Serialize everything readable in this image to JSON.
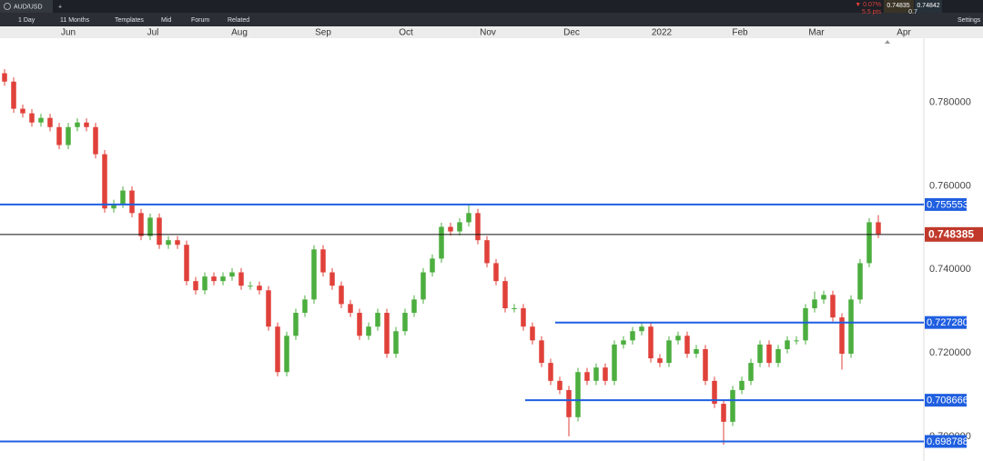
{
  "toolbar": {
    "symbol": "AUD/USD",
    "add": "+",
    "interval": "1 Day",
    "range": "11 Months",
    "templates": "Templates",
    "mid": "Mid",
    "forum": "Forum",
    "related": "Related",
    "settings": "Settings",
    "change_pct": "▼ 0.07%",
    "change_pts": "5.5 pts",
    "sell": "0.74835",
    "buy": "0.74842",
    "spread": "0.7"
  },
  "chart_data": {
    "type": "candlestick",
    "x": [
      0,
      1,
      2,
      3,
      4,
      5,
      6,
      7,
      8,
      9,
      10,
      11,
      12,
      13,
      14,
      15,
      16,
      17,
      18,
      19,
      20,
      21,
      22,
      23,
      24,
      25,
      26,
      27,
      28,
      29,
      30,
      31,
      32,
      33,
      34,
      35,
      36,
      37,
      38,
      39,
      40,
      41,
      42,
      43,
      44,
      45,
      46,
      47,
      48,
      49,
      50,
      51,
      52,
      53,
      54,
      55,
      56,
      57,
      58,
      59,
      60,
      61,
      62,
      63,
      64,
      65,
      66,
      67,
      68,
      69,
      70,
      71,
      72,
      73,
      74,
      75,
      76,
      77,
      78,
      79,
      80,
      81,
      82,
      83,
      84,
      85,
      86,
      87,
      88,
      89,
      90,
      91,
      92,
      93,
      94,
      95,
      96
    ],
    "open": [
      0.787,
      0.785,
      0.7785,
      0.7774,
      0.7752,
      0.7763,
      0.7741,
      0.7698,
      0.7741,
      0.7752,
      0.7741,
      0.7676,
      0.7546,
      0.7557,
      0.7589,
      0.7535,
      0.748,
      0.7524,
      0.7459,
      0.747,
      0.7459,
      0.7372,
      0.735,
      0.7383,
      0.7372,
      0.7383,
      0.7393,
      0.7361,
      0.7361,
      0.735,
      0.7263,
      0.7154,
      0.7241,
      0.7296,
      0.7328,
      0.7448,
      0.7393,
      0.7361,
      0.7317,
      0.7296,
      0.7241,
      0.7263,
      0.7296,
      0.7198,
      0.7252,
      0.7296,
      0.7328,
      0.7393,
      0.7426,
      0.7502,
      0.7491,
      0.7513,
      0.7535,
      0.747,
      0.7415,
      0.7372,
      0.7307,
      0.7307,
      0.7263,
      0.723,
      0.7176,
      0.7133,
      0.7111,
      0.7046,
      0.7154,
      0.7133,
      0.7165,
      0.7133,
      0.722,
      0.723,
      0.7252,
      0.7263,
      0.7187,
      0.7176,
      0.723,
      0.7241,
      0.7198,
      0.7209,
      0.7133,
      0.7078,
      0.7035,
      0.7111,
      0.7133,
      0.7176,
      0.722,
      0.7176,
      0.7209,
      0.723,
      0.723,
      0.7307,
      0.7328,
      0.7339,
      0.7285,
      0.7198,
      0.7328,
      0.7415,
      0.7513
    ],
    "high": [
      0.788,
      0.786,
      0.7795,
      0.7784,
      0.7773,
      0.7773,
      0.7751,
      0.7751,
      0.7762,
      0.7762,
      0.7751,
      0.7686,
      0.7567,
      0.7599,
      0.7599,
      0.7545,
      0.7534,
      0.7534,
      0.748,
      0.748,
      0.7469,
      0.7382,
      0.7393,
      0.7393,
      0.7393,
      0.7403,
      0.7403,
      0.7371,
      0.7371,
      0.736,
      0.7273,
      0.7251,
      0.7306,
      0.7338,
      0.7458,
      0.7458,
      0.7403,
      0.7371,
      0.7327,
      0.7306,
      0.7273,
      0.7306,
      0.7306,
      0.7262,
      0.7306,
      0.7338,
      0.7403,
      0.7436,
      0.7512,
      0.7512,
      0.7523,
      0.7555,
      0.7545,
      0.748,
      0.7425,
      0.7382,
      0.7317,
      0.7317,
      0.7273,
      0.724,
      0.7186,
      0.7143,
      0.7121,
      0.7164,
      0.7164,
      0.7175,
      0.7175,
      0.723,
      0.724,
      0.7262,
      0.7273,
      0.7273,
      0.7197,
      0.724,
      0.7251,
      0.7251,
      0.7219,
      0.7219,
      0.7143,
      0.7088,
      0.7121,
      0.7143,
      0.7186,
      0.723,
      0.723,
      0.7219,
      0.724,
      0.724,
      0.7317,
      0.7347,
      0.7349,
      0.7349,
      0.7295,
      0.7338,
      0.7425,
      0.7523,
      0.753
    ],
    "low": [
      0.784,
      0.7775,
      0.7764,
      0.7742,
      0.7742,
      0.7731,
      0.7688,
      0.7688,
      0.7731,
      0.7731,
      0.7666,
      0.7536,
      0.7536,
      0.7547,
      0.7525,
      0.747,
      0.747,
      0.7449,
      0.7449,
      0.7449,
      0.7362,
      0.734,
      0.734,
      0.7362,
      0.7362,
      0.7373,
      0.7351,
      0.7351,
      0.734,
      0.7253,
      0.7144,
      0.7144,
      0.7231,
      0.7286,
      0.7318,
      0.7383,
      0.7351,
      0.7307,
      0.7286,
      0.7231,
      0.7231,
      0.7253,
      0.7188,
      0.7188,
      0.7242,
      0.7286,
      0.7318,
      0.7383,
      0.7416,
      0.7481,
      0.7481,
      0.7503,
      0.746,
      0.7405,
      0.7362,
      0.7297,
      0.7297,
      0.7253,
      0.722,
      0.7166,
      0.7123,
      0.7101,
      0.7,
      0.7036,
      0.7123,
      0.7123,
      0.7123,
      0.7123,
      0.721,
      0.722,
      0.7242,
      0.7177,
      0.7166,
      0.7166,
      0.722,
      0.7188,
      0.7188,
      0.7123,
      0.7068,
      0.698,
      0.7025,
      0.7101,
      0.7123,
      0.7166,
      0.7166,
      0.7166,
      0.7199,
      0.722,
      0.722,
      0.7297,
      0.7318,
      0.7275,
      0.716,
      0.7188,
      0.7318,
      0.7405,
      0.7475
    ],
    "close": [
      0.785,
      0.7785,
      0.7774,
      0.7752,
      0.7763,
      0.7741,
      0.7698,
      0.7741,
      0.7752,
      0.7741,
      0.7676,
      0.7546,
      0.7557,
      0.7589,
      0.7535,
      0.748,
      0.7524,
      0.7459,
      0.747,
      0.7459,
      0.7372,
      0.735,
      0.7383,
      0.7372,
      0.7383,
      0.7393,
      0.7361,
      0.7361,
      0.735,
      0.7263,
      0.7154,
      0.7241,
      0.7296,
      0.7328,
      0.7448,
      0.7393,
      0.7361,
      0.7317,
      0.7296,
      0.7241,
      0.7263,
      0.7296,
      0.7198,
      0.7252,
      0.7296,
      0.7328,
      0.7393,
      0.7426,
      0.7502,
      0.7491,
      0.7513,
      0.7535,
      0.747,
      0.7415,
      0.7372,
      0.7307,
      0.7307,
      0.7263,
      0.723,
      0.7176,
      0.7133,
      0.7111,
      0.7046,
      0.7154,
      0.7133,
      0.7165,
      0.7133,
      0.722,
      0.723,
      0.7252,
      0.7263,
      0.7187,
      0.7176,
      0.723,
      0.7241,
      0.7198,
      0.7209,
      0.7133,
      0.7078,
      0.7035,
      0.7111,
      0.7133,
      0.7176,
      0.722,
      0.7176,
      0.7209,
      0.723,
      0.723,
      0.7307,
      0.7328,
      0.7339,
      0.7285,
      0.7198,
      0.7328,
      0.7415,
      0.7513,
      0.7485
    ],
    "up_color": "#4cae3f",
    "down_color": "#e0413a",
    "xlim": [
      -0.5,
      101
    ],
    "xticks": [
      {
        "value": 7,
        "label": "Jun"
      },
      {
        "value": 16.3,
        "label": "Jul"
      },
      {
        "value": 25.8,
        "label": "Aug"
      },
      {
        "value": 35,
        "label": "Sep"
      },
      {
        "value": 44.1,
        "label": "Oct"
      },
      {
        "value": 53.1,
        "label": "Nov"
      },
      {
        "value": 62.3,
        "label": "Dec"
      },
      {
        "value": 72.2,
        "label": "2022"
      },
      {
        "value": 80.8,
        "label": "Feb"
      },
      {
        "value": 89.2,
        "label": "Mar"
      },
      {
        "value": 98.8,
        "label": "Apr"
      }
    ],
    "ylim": [
      0.6941,
      0.7954
    ],
    "yticks": [
      {
        "value": 0.7,
        "label": "0.700000"
      },
      {
        "value": 0.72,
        "label": "0.720000"
      },
      {
        "value": 0.74,
        "label": "0.740000"
      },
      {
        "value": 0.76,
        "label": "0.760000"
      },
      {
        "value": 0.78,
        "label": "0.780000"
      }
    ],
    "levels": [
      {
        "value": 0.755553,
        "label": "0.755553",
        "color": "#1f5fe0",
        "x_start": -0.5
      },
      {
        "value": 0.72728,
        "label": "0.727280",
        "color": "#1f5fe0",
        "x_start": 60.5
      },
      {
        "value": 0.708666,
        "label": "0.708666",
        "color": "#1f5fe0",
        "x_start": 57.2
      },
      {
        "value": 0.698788,
        "label": "0.698788",
        "color": "#1f5fe0",
        "x_start": -0.5
      }
    ],
    "current": {
      "value": 0.748385,
      "label": "0.748385",
      "color": "#c0392b"
    }
  }
}
